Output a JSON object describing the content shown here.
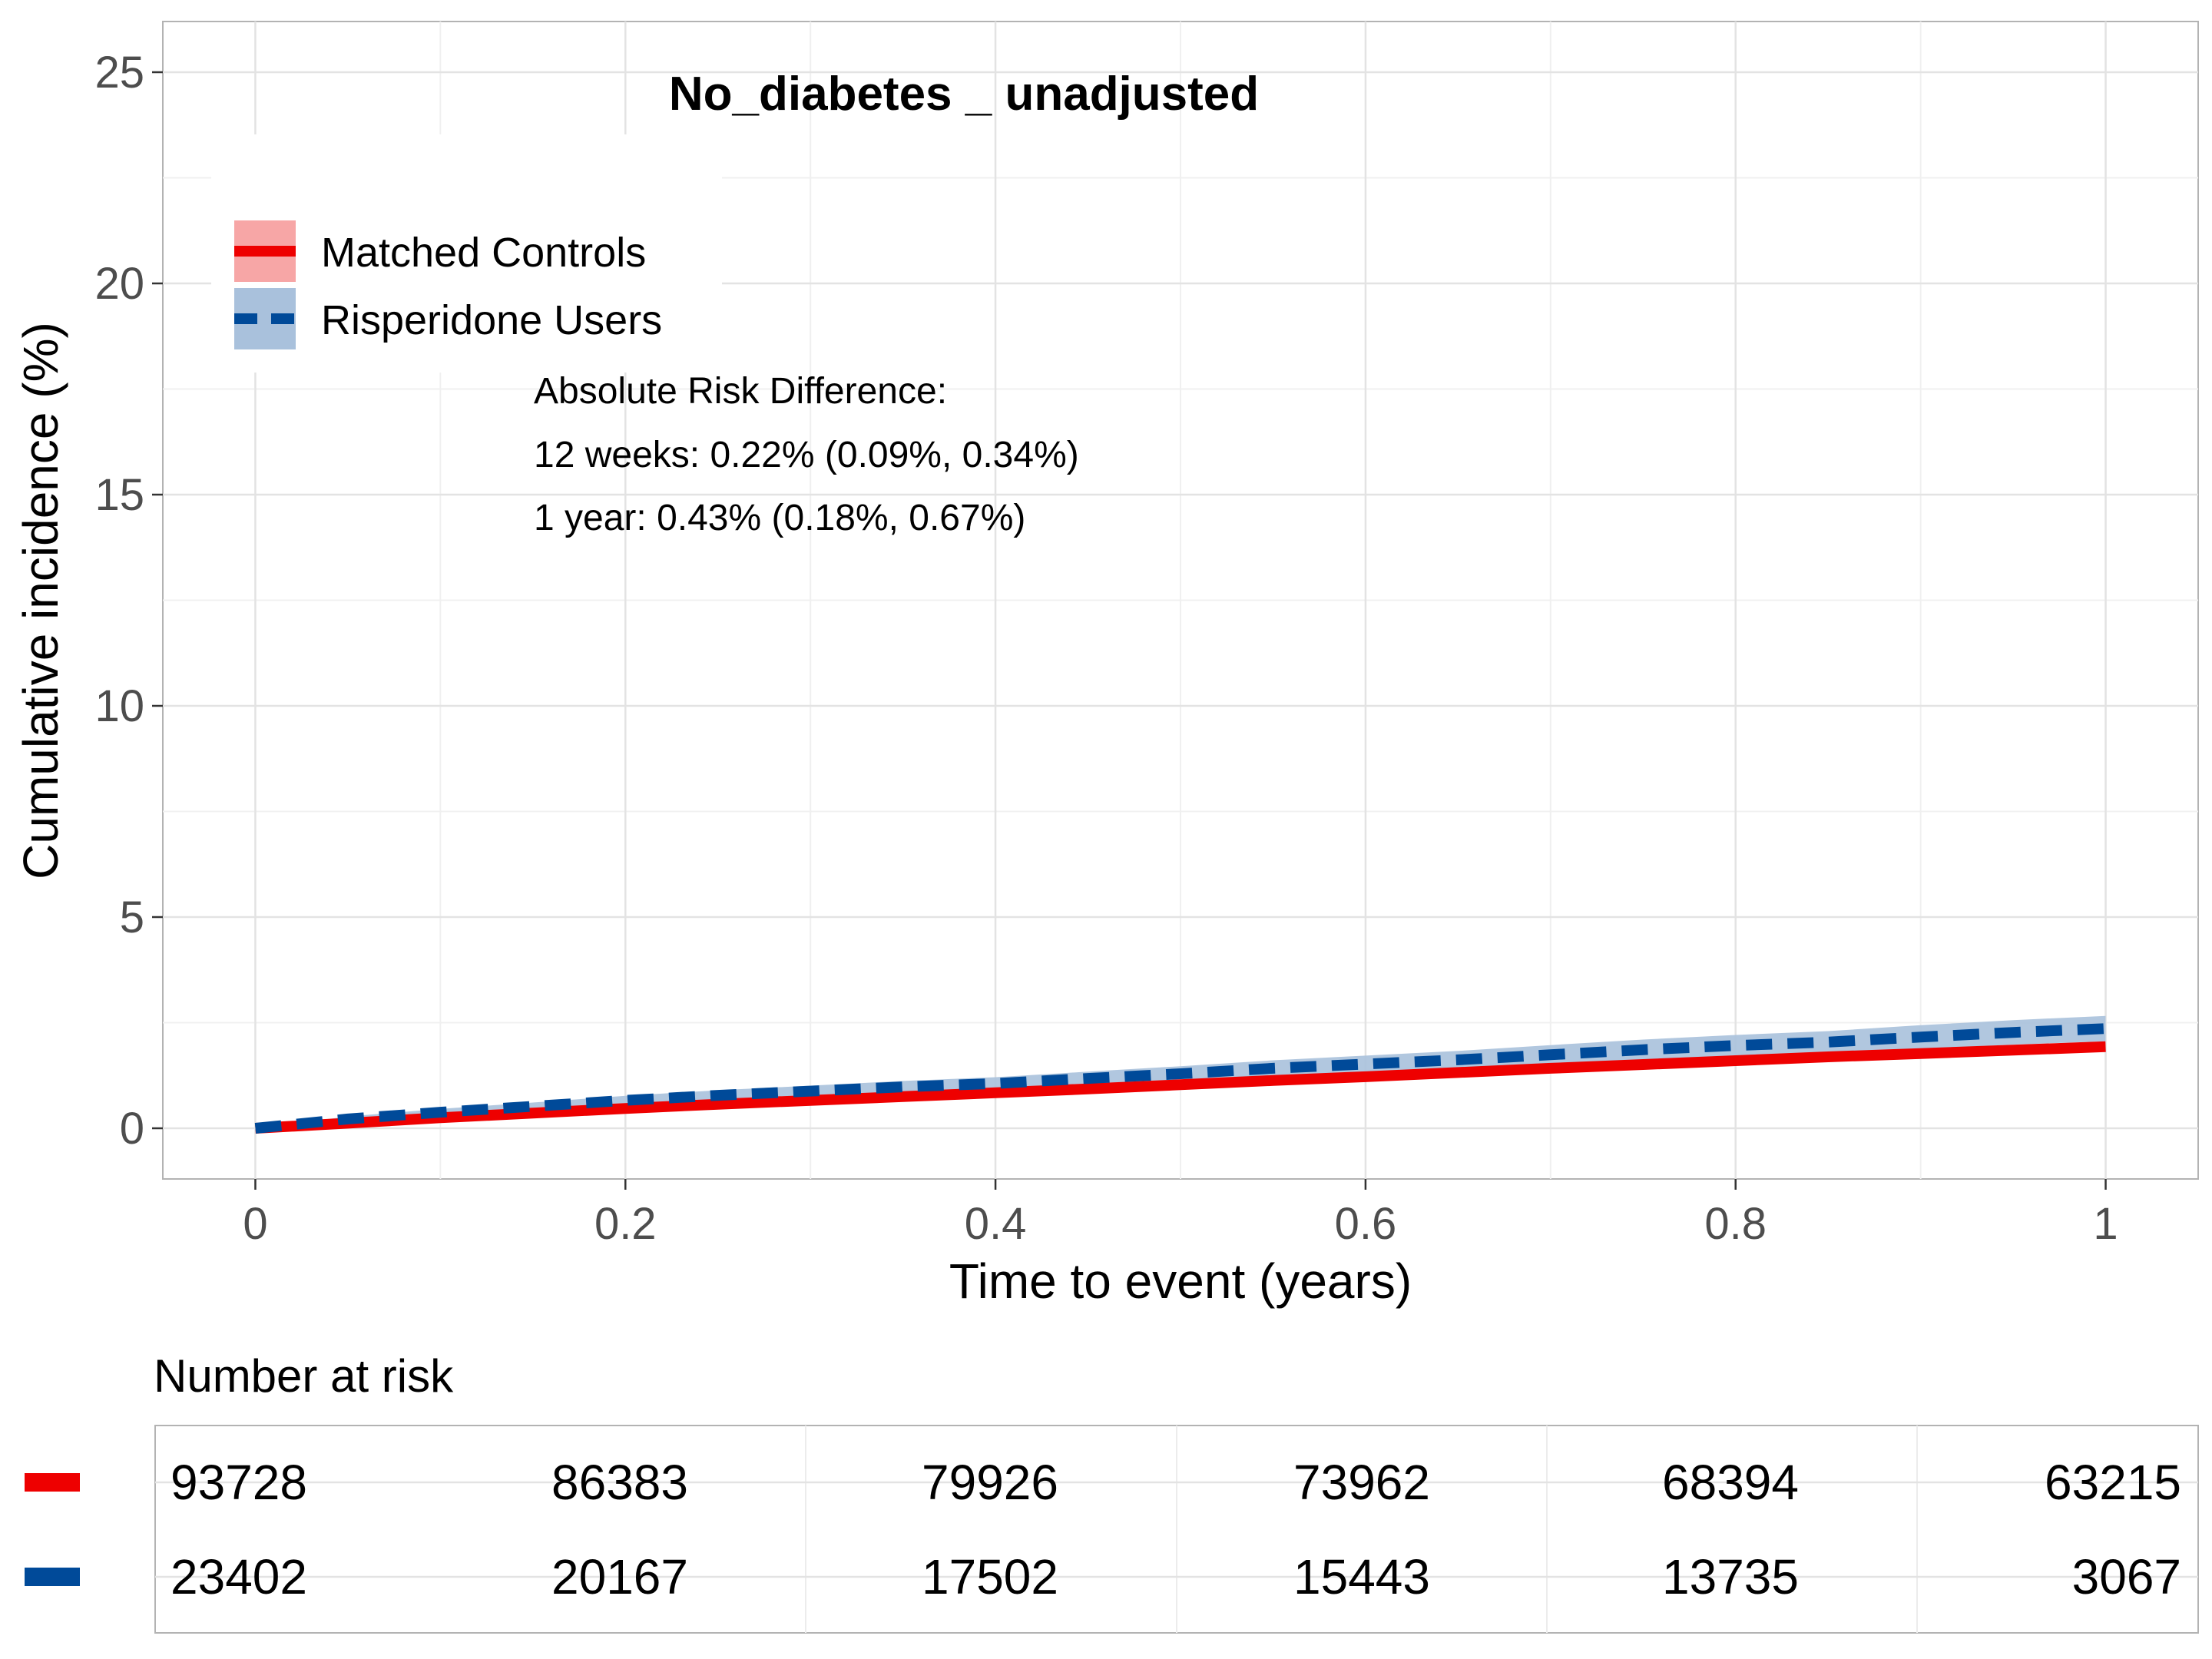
{
  "chart_data": {
    "type": "line",
    "title": "No_diabetes _ unadjusted",
    "xlabel": "Time to event (years)",
    "ylabel": "Cumulative incidence (%)",
    "xlim": [
      -0.05,
      1.05
    ],
    "ylim": [
      -1.2,
      26.2
    ],
    "x_ticks": [
      0,
      0.2,
      0.4,
      0.6,
      0.8,
      1
    ],
    "x_tick_labels": [
      "0",
      "0.2",
      "0.4",
      "0.6",
      "0.8",
      "1"
    ],
    "y_ticks": [
      0,
      5,
      10,
      15,
      20,
      25
    ],
    "y_tick_labels": [
      "0",
      "5",
      "10",
      "15",
      "20",
      "25"
    ],
    "grid": true,
    "legend_position": "top-left",
    "series": [
      {
        "name": "Matched Controls",
        "color": "#ee0000",
        "ribbon_color": "#f7a6a6",
        "line_style": "solid",
        "x": [
          0,
          0.05,
          0.1,
          0.15,
          0.2,
          0.25,
          0.3,
          0.35,
          0.4,
          0.45,
          0.5,
          0.55,
          0.6,
          0.65,
          0.7,
          0.75,
          0.8,
          0.85,
          0.9,
          0.95,
          1.0
        ],
        "y": [
          0,
          0.12,
          0.25,
          0.36,
          0.47,
          0.57,
          0.66,
          0.75,
          0.84,
          0.93,
          1.03,
          1.13,
          1.22,
          1.32,
          1.42,
          1.51,
          1.6,
          1.69,
          1.77,
          1.85,
          1.93
        ],
        "lower": [
          0,
          0.09,
          0.21,
          0.32,
          0.42,
          0.52,
          0.61,
          0.7,
          0.78,
          0.87,
          0.97,
          1.06,
          1.15,
          1.25,
          1.34,
          1.43,
          1.52,
          1.6,
          1.68,
          1.76,
          1.83
        ],
        "upper": [
          0,
          0.15,
          0.29,
          0.4,
          0.52,
          0.62,
          0.71,
          0.8,
          0.9,
          0.99,
          1.09,
          1.2,
          1.29,
          1.39,
          1.5,
          1.59,
          1.68,
          1.78,
          1.86,
          1.94,
          2.03
        ]
      },
      {
        "name": "Risperidone Users",
        "color": "#004a99",
        "ribbon_color": "#a9c1dc",
        "line_style": "dashed",
        "x": [
          0,
          0.05,
          0.1,
          0.15,
          0.2,
          0.25,
          0.3,
          0.35,
          0.4,
          0.45,
          0.5,
          0.55,
          0.6,
          0.65,
          0.7,
          0.75,
          0.8,
          0.85,
          0.9,
          0.95,
          1.0
        ],
        "y": [
          0,
          0.22,
          0.38,
          0.52,
          0.66,
          0.78,
          0.88,
          0.98,
          1.06,
          1.18,
          1.29,
          1.42,
          1.52,
          1.62,
          1.74,
          1.86,
          1.96,
          2.04,
          2.16,
          2.27,
          2.36
        ],
        "lower": [
          0,
          0.16,
          0.3,
          0.43,
          0.55,
          0.66,
          0.75,
          0.84,
          0.91,
          1.02,
          1.11,
          1.23,
          1.32,
          1.41,
          1.51,
          1.62,
          1.71,
          1.78,
          1.88,
          1.98,
          2.06
        ],
        "upper": [
          0,
          0.28,
          0.46,
          0.61,
          0.77,
          0.9,
          1.01,
          1.12,
          1.21,
          1.34,
          1.47,
          1.61,
          1.72,
          1.83,
          1.97,
          2.1,
          2.21,
          2.3,
          2.44,
          2.56,
          2.66
        ]
      }
    ],
    "annotations": [
      "Absolute Risk Difference:",
      "12 weeks: 0.22% (0.09%, 0.34%)",
      "1 year: 0.43% (0.18%, 0.67%)"
    ],
    "risk_table": {
      "title": "Number at risk",
      "times": [
        0,
        0.2,
        0.4,
        0.6,
        0.8,
        1
      ],
      "rows": [
        {
          "series": "Matched Controls",
          "color": "#ee0000",
          "values": [
            "93728",
            "86383",
            "79926",
            "73962",
            "68394",
            "63215"
          ]
        },
        {
          "series": "Risperidone Users",
          "color": "#004a99",
          "values": [
            "23402",
            "20167",
            "17502",
            "15443",
            "13735",
            "3067"
          ]
        }
      ]
    }
  }
}
